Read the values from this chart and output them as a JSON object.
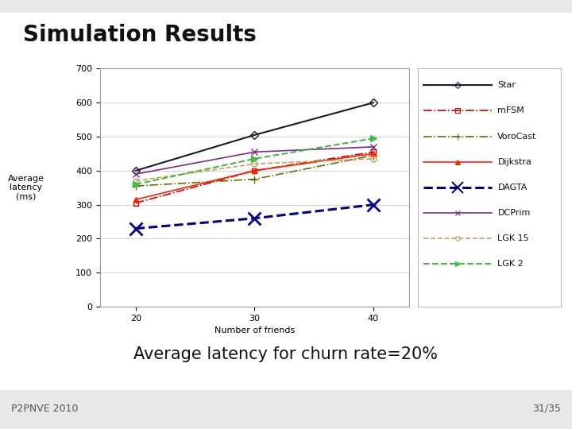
{
  "title": "Simulation Results",
  "subtitle": "Average latency for churn rate=20%",
  "footer_left": "P2PNVE 2010",
  "footer_right": "31/35",
  "xlabel": "Number of friends",
  "ylabel": "Average\nlatency\n(ms)",
  "x": [
    20,
    30,
    40
  ],
  "series_order": [
    "Star",
    "mFSM",
    "VoroCast",
    "Dijkstra",
    "DAGTA",
    "DCPrim",
    "LGK 15",
    "LGK 2"
  ],
  "series": {
    "Star": {
      "y": [
        400,
        505,
        600
      ],
      "color": "#1a1a2e",
      "linestyle": "-",
      "marker": "D",
      "markersize": 5,
      "linewidth": 1.5,
      "mfc": "none"
    },
    "mFSM": {
      "y": [
        305,
        400,
        455
      ],
      "color": "#cc0000",
      "linestyle": "-.",
      "marker": "s",
      "markersize": 5,
      "linewidth": 1.2,
      "mfc": "none"
    },
    "VoroCast": {
      "y": [
        355,
        375,
        445
      ],
      "color": "#6b6b00",
      "linestyle": "-.",
      "marker": "+",
      "markersize": 7,
      "linewidth": 1.2,
      "mfc": "#6b6b00"
    },
    "Dijkstra": {
      "y": [
        315,
        400,
        450
      ],
      "color": "#ff2200",
      "linestyle": "-",
      "marker": "^",
      "markersize": 5,
      "linewidth": 1.2,
      "mfc": "#ff2200"
    },
    "DAGTA": {
      "y": [
        230,
        260,
        300
      ],
      "color": "#00008b",
      "linestyle": "--",
      "marker": "x",
      "markersize": 12,
      "linewidth": 2.2,
      "mfc": "#00008b"
    },
    "DCPrim": {
      "y": [
        390,
        455,
        470
      ],
      "color": "#7b2d8b",
      "linestyle": "-",
      "marker": "x",
      "markersize": 6,
      "linewidth": 1.2,
      "mfc": "#7b2d8b"
    },
    "LGK 15": {
      "y": [
        370,
        420,
        435
      ],
      "color": "#c8a060",
      "linestyle": "--",
      "marker": "o",
      "markersize": 5,
      "linewidth": 1.2,
      "mfc": "none"
    },
    "LGK 2": {
      "y": [
        360,
        435,
        495
      ],
      "color": "#44bb44",
      "linestyle": "--",
      "marker": ">",
      "markersize": 6,
      "linewidth": 1.5,
      "mfc": "#44bb44"
    }
  },
  "ylim": [
    0,
    700
  ],
  "yticks": [
    0,
    100,
    200,
    300,
    400,
    500,
    600,
    700
  ],
  "xlim": [
    17,
    43
  ],
  "xticks": [
    20,
    30,
    40
  ],
  "slide_bg": "#e8e8e8",
  "inner_bg": "#ffffff",
  "plot_bg": "#ffffff",
  "title_fontsize": 20,
  "subtitle_fontsize": 15,
  "footer_fontsize": 9,
  "axis_label_fontsize": 8,
  "tick_fontsize": 8,
  "legend_fontsize": 8
}
